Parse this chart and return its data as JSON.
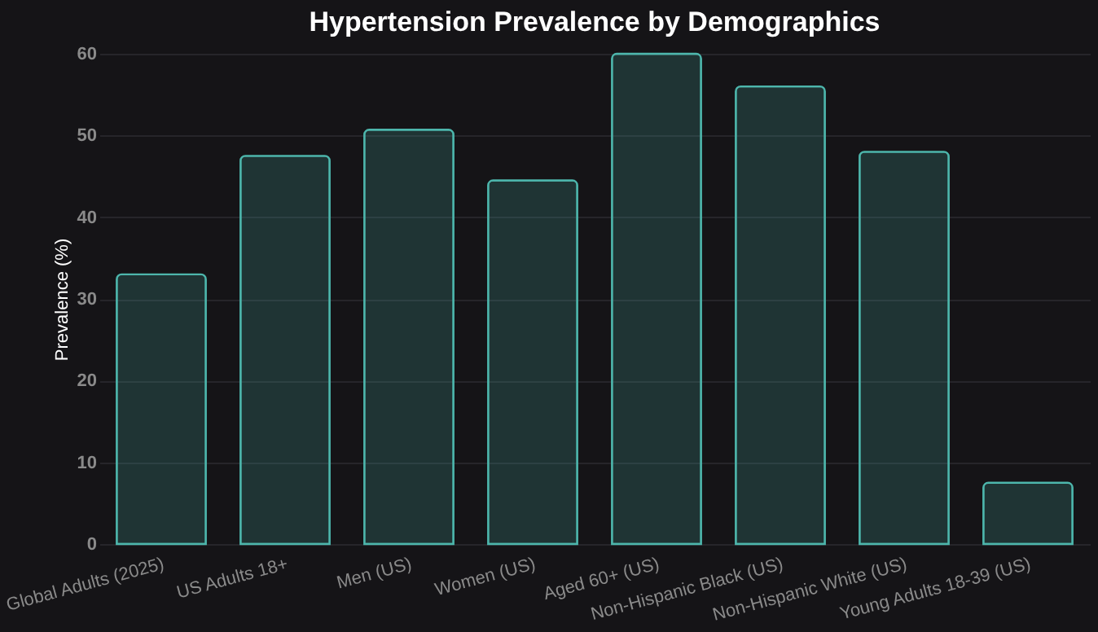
{
  "chart_data": {
    "type": "bar",
    "title": "Hypertension Prevalence by Demographics",
    "ylabel": "Prevalence (%)",
    "categories": [
      "Global Adults (2025)",
      "US Adults 18+",
      "Men (US)",
      "Women (US)",
      "Aged 60+ (US)",
      "Non-Hispanic Black (US)",
      "Non-Hispanic White (US)",
      "Young Adults 18-39 (US)"
    ],
    "values": [
      33,
      47.5,
      50.7,
      44.5,
      60,
      56,
      48,
      7.5
    ],
    "color": "#4db6ac",
    "ylim": [
      0,
      60
    ],
    "yticks": [
      0,
      10,
      20,
      30,
      40,
      50,
      60
    ],
    "grid": "y"
  }
}
